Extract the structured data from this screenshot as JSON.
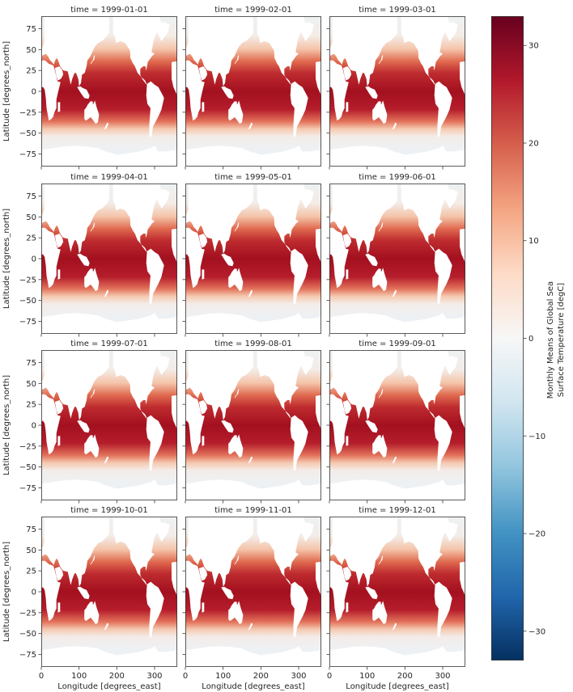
{
  "chart_data": {
    "type": "heatmap",
    "facet_label_prefix": "time = ",
    "panels": [
      {
        "time": "1999-01-01"
      },
      {
        "time": "1999-02-01"
      },
      {
        "time": "1999-03-01"
      },
      {
        "time": "1999-04-01"
      },
      {
        "time": "1999-05-01"
      },
      {
        "time": "1999-06-01"
      },
      {
        "time": "1999-07-01"
      },
      {
        "time": "1999-08-01"
      },
      {
        "time": "1999-09-01"
      },
      {
        "time": "1999-10-01"
      },
      {
        "time": "1999-11-01"
      },
      {
        "time": "1999-12-01"
      }
    ],
    "xlabel": "Longitude [degrees_east]",
    "ylabel": "Latitude [degrees_north]",
    "xlim": [
      0,
      360
    ],
    "ylim": [
      -90,
      90
    ],
    "xticks": [
      0,
      100,
      200,
      300
    ],
    "yticks": [
      -75,
      -50,
      -25,
      0,
      25,
      50,
      75
    ],
    "colorbar": {
      "label": "Monthly Means of Global Sea Surface Temperature [degC]",
      "label_lines": [
        "Monthly Means of Global Sea",
        "Surface Temperature [degC]"
      ],
      "range": [
        -33,
        33
      ],
      "ticks": [
        -30,
        -20,
        -10,
        0,
        10,
        20,
        30
      ],
      "colormap": "RdBu_r",
      "colors": [
        "#053061",
        "#2166ac",
        "#4393c3",
        "#92c5de",
        "#d1e5f0",
        "#f7f7f7",
        "#fddbc7",
        "#f4a582",
        "#d6604d",
        "#b2182b",
        "#67001f"
      ]
    },
    "land_color": "#ffffff",
    "grid": false
  }
}
